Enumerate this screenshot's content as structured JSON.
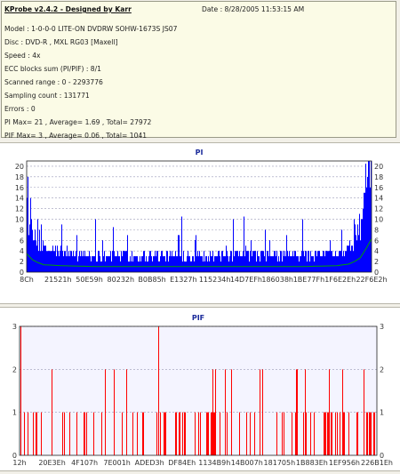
{
  "header": {
    "title": "KProbe v2.4.2 - Designed by Karr",
    "date": "Date : 8/28/2005 11:53:15 AM",
    "lines": [
      "Model : 1-0-0-0 LITE-ON DVDRW SOHW-1673S JS07",
      "Disc : DVD-R , MXL RG03 [Maxell]",
      "Speed : 4x",
      "ECC blocks sum (PI/PIF) : 8/1",
      "Scanned range : 0 - 2293776",
      "Sampling count : 131771",
      "Errors : 0",
      "PI Max= 21 , Average= 1.69 , Total= 27972",
      "PIF Max= 3 , Average= 0.06 , Total= 1041"
    ]
  },
  "chart_data": [
    {
      "type": "bar",
      "title": "PI",
      "ylim": [
        0,
        21
      ],
      "yticks": [
        0,
        2,
        4,
        6,
        8,
        10,
        12,
        14,
        16,
        18,
        20
      ],
      "xticks": [
        "8Ch",
        "21521h",
        "50E59h",
        "80232h",
        "B0B85h",
        "E1327h",
        "115234h",
        "14D7EFh",
        "186038h",
        "1BE77Fh",
        "1F6E2Eh",
        "22F6E2h"
      ],
      "x_range": [
        0,
        2293776
      ],
      "grid": true,
      "bar_color": "#0000ff",
      "line_color": "#00a000",
      "summary": {
        "max": 21,
        "average": 1.69,
        "total": 27972
      },
      "profile": [
        [
          0,
          10
        ],
        [
          0.02,
          6
        ],
        [
          0.05,
          4
        ],
        [
          0.1,
          3.5
        ],
        [
          0.2,
          3
        ],
        [
          0.5,
          3
        ],
        [
          0.8,
          3
        ],
        [
          0.9,
          3.5
        ],
        [
          0.94,
          4.5
        ],
        [
          0.97,
          8
        ],
        [
          1.0,
          18
        ]
      ],
      "spikes": [
        [
          0.003,
          18
        ],
        [
          0.01,
          14
        ],
        [
          0.03,
          10
        ],
        [
          0.1,
          9
        ],
        [
          0.2,
          10
        ],
        [
          0.25,
          8.5
        ],
        [
          0.45,
          10.5
        ],
        [
          0.6,
          10
        ],
        [
          0.63,
          10.5
        ],
        [
          0.8,
          10
        ],
        [
          0.985,
          20.5
        ],
        [
          0.995,
          21
        ]
      ]
    },
    {
      "type": "bar",
      "title": "PIF",
      "ylim": [
        0,
        3
      ],
      "yticks": [
        0,
        1,
        2,
        3
      ],
      "xticks": [
        "12h",
        "20E3Eh",
        "4F107h",
        "7E001h",
        "ADED3h",
        "DF84Eh",
        "1134B9h",
        "14B007h",
        "181705h",
        "1B883Eh",
        "1EF956h",
        "226B1Eh"
      ],
      "x_range": [
        0,
        2293776
      ],
      "grid": true,
      "bar_color": "#ff0000",
      "summary": {
        "max": 3,
        "average": 0.06,
        "total": 1041
      },
      "spikes": [
        [
          0.002,
          3
        ],
        [
          0.39,
          3
        ]
      ]
    }
  ]
}
